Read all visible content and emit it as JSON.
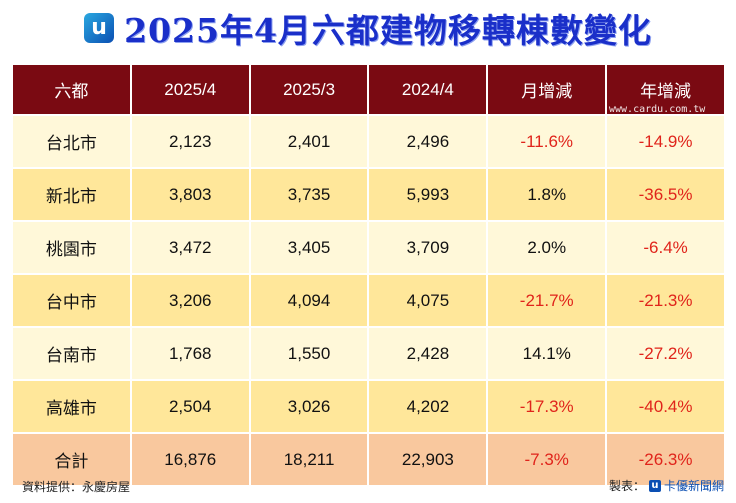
{
  "title": "2025年4月六都建物移轉棟數變化",
  "logo_glyph": "u",
  "watermark_url": "www.cardu.com.tw",
  "watermark_text": "cardu",
  "footer": {
    "source": "資料提供：永慶房屋",
    "producer_label": "製表：",
    "producer_brand": "卡優新聞網"
  },
  "colors": {
    "header_bg": "#7a0a12",
    "row_light": "#fff8d9",
    "row_dark": "#ffe79a",
    "row_total": "#f9c89e",
    "negative": "#e0241b",
    "title": "#1a2fc9"
  },
  "chart_data": {
    "type": "table",
    "title": "2025年4月六都建物移轉棟數變化",
    "columns": [
      "六都",
      "2025/4",
      "2025/3",
      "2024/4",
      "月增減",
      "年增減"
    ],
    "rows": [
      [
        "台北市",
        "2,123",
        "2,401",
        "2,496",
        "-11.6%",
        "-14.9%"
      ],
      [
        "新北市",
        "3,803",
        "3,735",
        "5,993",
        "1.8%",
        "-36.5%"
      ],
      [
        "桃園市",
        "3,472",
        "3,405",
        "3,709",
        "2.0%",
        "-6.4%"
      ],
      [
        "台中市",
        "3,206",
        "4,094",
        "4,075",
        "-21.7%",
        "-21.3%"
      ],
      [
        "台南市",
        "1,768",
        "1,550",
        "2,428",
        "14.1%",
        "-27.2%"
      ],
      [
        "高雄市",
        "2,504",
        "3,026",
        "4,202",
        "-17.3%",
        "-40.4%"
      ],
      [
        "合計",
        "16,876",
        "18,211",
        "22,903",
        "-7.3%",
        "-26.3%"
      ]
    ]
  }
}
